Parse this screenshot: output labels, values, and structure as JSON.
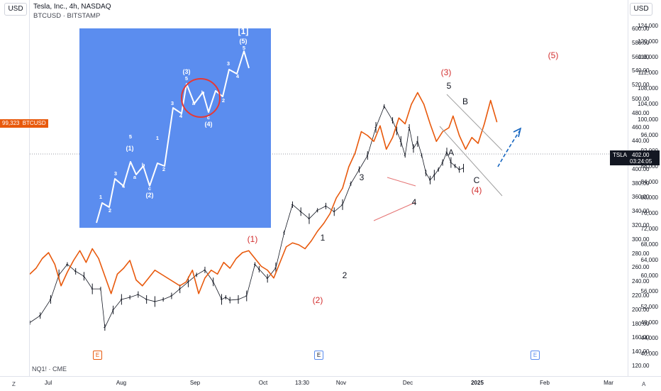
{
  "header": {
    "title": "Tesla, Inc., 4h, NASDAQ",
    "subtitle": "BTCUSD · BITSTAMP",
    "unit_left": "USD",
    "unit_right": "USD"
  },
  "price_badges": {
    "btc_value": "99,323",
    "btc_symbol": "BTCUSD",
    "tsla_symbol": "TSLA",
    "tsla_price": "402.00",
    "tsla_countdown": "03:24:05"
  },
  "indicator_label": "NQ1! · CME",
  "corner_left": "Z",
  "corner_right": "A",
  "event_markers": [
    "E",
    "E",
    "E"
  ],
  "colors": {
    "tsla_bars": "#131722",
    "btc_line": "#e8590c",
    "wave_red": "#d32f2f",
    "wave_black": "#131722",
    "inset_bg": "#5b8def",
    "inset_line": "#ffffff",
    "projection_arrow": "#1565c0",
    "badge_orange": "#e8590c",
    "badge_dark": "#131722"
  },
  "chart_data": {
    "type": "line",
    "x_labels": [
      "Jul",
      "Aug",
      "Sep",
      "Oct",
      "13:30",
      "Nov",
      "Dec",
      "2025",
      "Feb",
      "Mar"
    ],
    "left_axis": {
      "series": "BTCUSD",
      "ticks": [
        "124,000",
        "120,000",
        "116,000",
        "112,000",
        "108,000",
        "104,000",
        "100,000",
        "96,000",
        "92,000",
        "88,000",
        "84,000",
        "80,000",
        "76,000",
        "72,000",
        "68,000",
        "64,000",
        "60,000",
        "56,000",
        "52,000",
        "48,000",
        "44,000",
        "40,000"
      ],
      "range": [
        38000,
        126000
      ]
    },
    "right_axis": {
      "series": "TSLA",
      "ticks": [
        "600.00",
        "580.00",
        "560.00",
        "540.00",
        "520.00",
        "500.00",
        "480.00",
        "460.00",
        "440.00",
        "420.00",
        "400.00",
        "380.00",
        "360.00",
        "340.00",
        "320.00",
        "300.00",
        "280.00",
        "260.00",
        "240.00",
        "220.00",
        "200.00",
        "180.00",
        "160.00",
        "140.00",
        "120.00"
      ],
      "range": [
        110,
        610
      ]
    },
    "series": [
      {
        "name": "BTCUSD",
        "axis": "left",
        "t": [
          0,
          3,
          6,
          9,
          12,
          15,
          18,
          21,
          24,
          27,
          30,
          33,
          36,
          39,
          42,
          45,
          48,
          51,
          54,
          57,
          60,
          63,
          66,
          69,
          72,
          75,
          78,
          81,
          84,
          87,
          90,
          93,
          96,
          99,
          102,
          105,
          108,
          111,
          114,
          117,
          120,
          123,
          126,
          129,
          132,
          135,
          138,
          141,
          144,
          147,
          150,
          153,
          156,
          159,
          162,
          165,
          168,
          171,
          174,
          177,
          180,
          183,
          186,
          189,
          192,
          195,
          198,
          201,
          203,
          206,
          209,
          212,
          215,
          218,
          221,
          224
        ],
        "values": [
          60500,
          62000,
          64500,
          66000,
          63000,
          57500,
          61000,
          64000,
          66500,
          63500,
          67000,
          64500,
          60000,
          55500,
          60500,
          62000,
          64000,
          59000,
          57500,
          59500,
          61500,
          60500,
          59500,
          58500,
          57500,
          58500,
          61500,
          55500,
          59500,
          61500,
          60500,
          63500,
          62000,
          64500,
          66000,
          66500,
          64500,
          62500,
          61500,
          59500,
          63500,
          67500,
          68500,
          68000,
          67000,
          69000,
          71500,
          73500,
          76000,
          80000,
          82500,
          88000,
          91500,
          97000,
          96000,
          94500,
          98500,
          92500,
          95500,
          100500,
          99000,
          104000,
          107000,
          104000,
          99000,
          94500,
          97000,
          98000,
          101000,
          96000,
          92500,
          95500,
          94000,
          99000,
          105000,
          99500
        ]
      },
      {
        "name": "TSLA",
        "axis": "right",
        "t": [
          0,
          5,
          10,
          14,
          18,
          22,
          26,
          30,
          34,
          36,
          40,
          44,
          48,
          52,
          56,
          60,
          64,
          68,
          72,
          76,
          80,
          84,
          88,
          92,
          94,
          96,
          100,
          104,
          108,
          110,
          114,
          118,
          122,
          126,
          130,
          134,
          138,
          142,
          146,
          150,
          154,
          158,
          162,
          166,
          170,
          174,
          176,
          178,
          180,
          182,
          184,
          186,
          188,
          190,
          192,
          194,
          196,
          198,
          200,
          202,
          204,
          206,
          208
        ],
        "values": [
          182,
          192,
          215,
          250,
          265,
          255,
          248,
          230,
          230,
          175,
          200,
          215,
          218,
          222,
          215,
          212,
          215,
          220,
          230,
          240,
          250,
          257,
          240,
          215,
          218,
          214,
          215,
          220,
          265,
          258,
          245,
          260,
          310,
          350,
          340,
          330,
          342,
          348,
          340,
          350,
          380,
          400,
          420,
          460,
          490,
          470,
          455,
          440,
          420,
          460,
          430,
          440,
          420,
          395,
          385,
          392,
          400,
          410,
          425,
          410,
          405,
          400,
          402
        ]
      }
    ],
    "wave_labels": [
      {
        "text": "(1)",
        "color": "red"
      },
      {
        "text": "(2)",
        "color": "red"
      },
      {
        "text": "(3)",
        "color": "red"
      },
      {
        "text": "(4)",
        "color": "red"
      },
      {
        "text": "(5)",
        "color": "red"
      },
      {
        "text": "1",
        "color": "black"
      },
      {
        "text": "2",
        "color": "black"
      },
      {
        "text": "3",
        "color": "black"
      },
      {
        "text": "4",
        "color": "black"
      },
      {
        "text": "5",
        "color": "black"
      },
      {
        "text": "A",
        "color": "black"
      },
      {
        "text": "B",
        "color": "black"
      },
      {
        "text": "C",
        "color": "black"
      }
    ],
    "inset": {
      "description_labels": [
        "1",
        "2",
        "3",
        "4",
        "(1)",
        "5",
        "a",
        "b",
        "c",
        "(2)",
        "1",
        "2",
        "3",
        "4",
        "(3)",
        "5",
        "a",
        "b",
        "c",
        "(4)",
        "2",
        "3",
        "4",
        "(5)",
        "5",
        "[1]"
      ]
    }
  }
}
